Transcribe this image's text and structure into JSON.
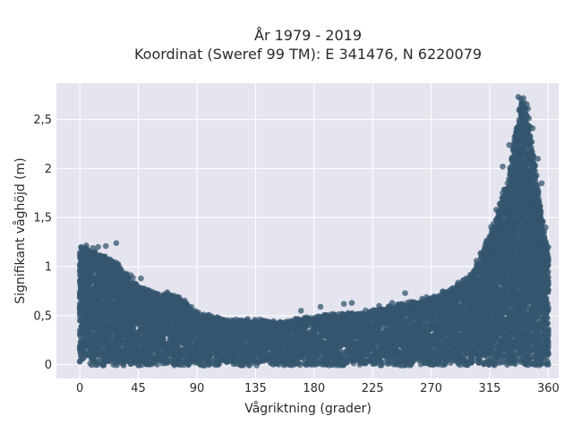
{
  "chart_data": {
    "type": "scatter",
    "title": "År 1979 - 2019",
    "subtitle": "Koordinat (Sweref 99 TM): E 341476, N 6220079",
    "xlabel": "Vågriktning (grader)",
    "ylabel": "Signifikant våghöjd (m)",
    "xlim": [
      -18,
      368
    ],
    "ylim": [
      -0.14,
      2.87
    ],
    "x_ticks": [
      0,
      45,
      90,
      135,
      180,
      225,
      270,
      315,
      360
    ],
    "y_ticks": [
      0,
      0.5,
      1,
      1.5,
      2,
      2.5
    ],
    "x_tick_labels": [
      "0",
      "45",
      "90",
      "135",
      "180",
      "225",
      "270",
      "315",
      "360"
    ],
    "y_tick_labels": [
      "0",
      "0,5",
      "1",
      "1,5",
      "2",
      "2,5"
    ],
    "grid": true,
    "marker_color": "#34566d",
    "plot_background": "#e5e5f0",
    "envelope": {
      "x": [
        0,
        5,
        10,
        20,
        30,
        45,
        60,
        75,
        90,
        105,
        120,
        135,
        150,
        165,
        180,
        195,
        210,
        225,
        240,
        255,
        270,
        285,
        300,
        310,
        320,
        330,
        335,
        340,
        345,
        350,
        355,
        360
      ],
      "y_max": [
        1.15,
        1.18,
        1.15,
        1.1,
        1.0,
        0.8,
        0.72,
        0.7,
        0.52,
        0.47,
        0.45,
        0.45,
        0.43,
        0.45,
        0.48,
        0.5,
        0.52,
        0.55,
        0.58,
        0.62,
        0.68,
        0.75,
        0.9,
        1.15,
        1.5,
        1.9,
        2.35,
        2.72,
        2.5,
        2.0,
        1.5,
        1.1
      ]
    },
    "outliers": [
      {
        "x": 1,
        "y": 1.2
      },
      {
        "x": 10,
        "y": 1.19
      },
      {
        "x": 14,
        "y": 1.2
      },
      {
        "x": 20,
        "y": 1.21
      },
      {
        "x": 28,
        "y": 1.24
      },
      {
        "x": 47,
        "y": 0.88
      },
      {
        "x": 170,
        "y": 0.55
      },
      {
        "x": 185,
        "y": 0.59
      },
      {
        "x": 203,
        "y": 0.62
      },
      {
        "x": 209,
        "y": 0.63
      },
      {
        "x": 230,
        "y": 0.6
      },
      {
        "x": 240,
        "y": 0.63
      },
      {
        "x": 250,
        "y": 0.73
      },
      {
        "x": 305,
        "y": 0.98
      },
      {
        "x": 311,
        "y": 1.05
      },
      {
        "x": 316,
        "y": 1.3
      },
      {
        "x": 320,
        "y": 1.58
      },
      {
        "x": 325,
        "y": 2.02
      },
      {
        "x": 330,
        "y": 2.24
      },
      {
        "x": 337,
        "y": 2.73
      },
      {
        "x": 339,
        "y": 2.71
      },
      {
        "x": 342,
        "y": 2.62
      },
      {
        "x": 348,
        "y": 2.41
      },
      {
        "x": 352,
        "y": 2.1
      },
      {
        "x": 355,
        "y": 1.85
      },
      {
        "x": 358,
        "y": 1.4
      },
      {
        "x": 360,
        "y": 1.2
      }
    ]
  }
}
